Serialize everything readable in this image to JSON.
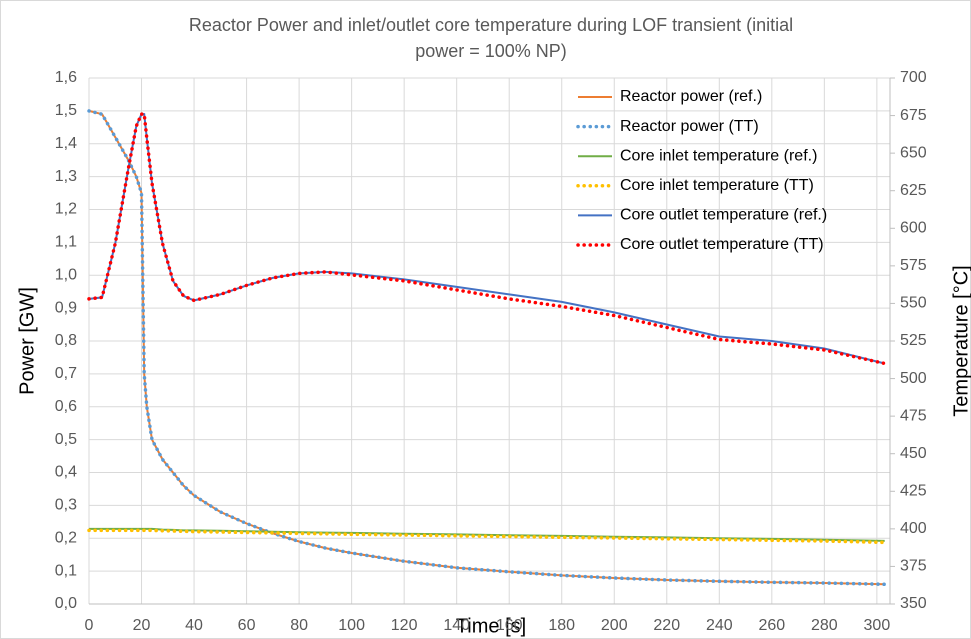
{
  "chart_data": {
    "type": "line",
    "title": "Reactor Power and inlet/outlet core temperature during LOF transient (initial",
    "subtitle": "power = 100% NP)",
    "x_label": "Time [s]",
    "y_label": "Power [GW]",
    "y2_label": "Temperature [°C]",
    "x": [
      0,
      5,
      10,
      15,
      18,
      20,
      21,
      22,
      24,
      28,
      32,
      36,
      40,
      50,
      60,
      70,
      80,
      90,
      100,
      120,
      140,
      160,
      180,
      200,
      220,
      240,
      260,
      280,
      303
    ],
    "xlim": [
      0,
      305
    ],
    "xticks": [
      0,
      20,
      40,
      60,
      80,
      100,
      120,
      140,
      160,
      180,
      200,
      220,
      240,
      260,
      280,
      300
    ],
    "ylim": [
      0,
      1.6
    ],
    "yticks": [
      {
        "value": 0,
        "label": "0,0"
      },
      {
        "value": 0.1,
        "label": "0,1"
      },
      {
        "value": 0.2,
        "label": "0,2"
      },
      {
        "value": 0.3,
        "label": "0,3"
      },
      {
        "value": 0.4,
        "label": "0,4"
      },
      {
        "value": 0.5,
        "label": "0,5"
      },
      {
        "value": 0.6,
        "label": "0,6"
      },
      {
        "value": 0.7,
        "label": "0,7"
      },
      {
        "value": 0.8,
        "label": "0,8"
      },
      {
        "value": 0.9,
        "label": "0,9"
      },
      {
        "value": 1.0,
        "label": "1,0"
      },
      {
        "value": 1.1,
        "label": "1,1"
      },
      {
        "value": 1.2,
        "label": "1,2"
      },
      {
        "value": 1.3,
        "label": "1,3"
      },
      {
        "value": 1.4,
        "label": "1,4"
      },
      {
        "value": 1.5,
        "label": "1,5"
      },
      {
        "value": 1.6,
        "label": "1,6"
      }
    ],
    "y2lim": [
      350,
      700
    ],
    "y2ticks": [
      350,
      375,
      400,
      425,
      450,
      475,
      500,
      525,
      550,
      575,
      600,
      625,
      650,
      675,
      700
    ],
    "grid": true,
    "legend": "upper right",
    "series": [
      {
        "name": "Reactor power (ref.)",
        "color": "#ed7d31",
        "style": "solid",
        "values": [
          1.5,
          1.49,
          1.42,
          1.35,
          1.3,
          1.25,
          0.7,
          0.6,
          0.5,
          0.44,
          0.4,
          0.36,
          0.33,
          0.28,
          0.245,
          0.215,
          0.19,
          0.17,
          0.155,
          0.13,
          0.11,
          0.098,
          0.087,
          0.079,
          0.073,
          0.069,
          0.066,
          0.064,
          0.06
        ]
      },
      {
        "name": "Reactor power (TT)",
        "color": "#5b9bd5",
        "style": "dotted",
        "values": [
          1.5,
          1.49,
          1.42,
          1.35,
          1.3,
          1.25,
          0.7,
          0.6,
          0.5,
          0.44,
          0.4,
          0.36,
          0.33,
          0.28,
          0.245,
          0.215,
          0.19,
          0.17,
          0.155,
          0.13,
          0.11,
          0.098,
          0.087,
          0.079,
          0.073,
          0.069,
          0.066,
          0.064,
          0.06
        ]
      },
      {
        "name": "Core inlet temperature (ref.)",
        "color": "#70ad47",
        "style": "solid",
        "axis": "y2",
        "values": [
          400,
          400,
          400,
          400,
          400,
          400,
          400,
          400,
          400,
          399.5,
          399.3,
          399,
          399,
          398.7,
          398.4,
          398.1,
          397.8,
          397.5,
          397.3,
          396.8,
          396.3,
          395.8,
          395.3,
          394.8,
          394.3,
          393.8,
          393.3,
          392.8,
          392
        ]
      },
      {
        "name": "Core inlet temperature (TT)",
        "color": "#ffc000",
        "style": "dotted",
        "axis": "y2",
        "values": [
          399,
          399,
          399,
          399,
          399,
          399,
          399,
          399,
          399,
          398.8,
          398.6,
          398.4,
          398.2,
          397.9,
          397.6,
          397.3,
          397,
          396.7,
          396.4,
          395.9,
          395.4,
          394.9,
          394.4,
          393.9,
          393.4,
          392.9,
          392.4,
          391.9,
          391
        ]
      },
      {
        "name": "Core outlet temperature (ref.)",
        "color": "#4472c4",
        "style": "solid",
        "axis": "y2",
        "values": [
          553,
          554,
          590,
          640,
          668,
          676,
          676,
          660,
          630,
          590,
          565,
          555,
          552,
          556,
          562,
          567,
          570,
          571,
          570,
          566,
          561,
          556,
          551,
          544,
          536,
          528,
          525,
          520,
          510
        ]
      },
      {
        "name": "Core outlet temperature (TT)",
        "color": "#ff0000",
        "style": "dotted",
        "axis": "y2",
        "values": [
          553,
          554,
          590,
          640,
          668,
          676,
          676,
          660,
          630,
          590,
          565,
          555,
          552,
          556,
          562,
          567,
          570,
          571,
          569,
          565,
          559,
          553,
          548,
          542,
          534,
          526,
          523,
          519,
          510
        ]
      }
    ]
  }
}
